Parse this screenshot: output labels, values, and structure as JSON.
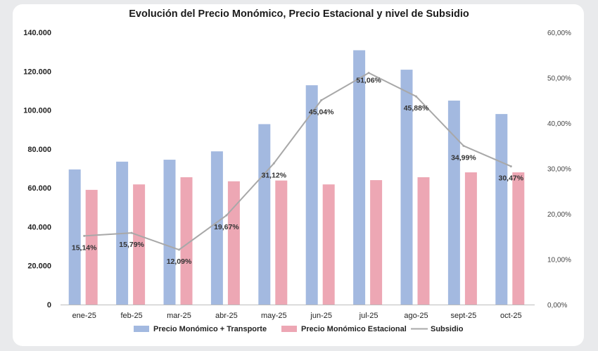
{
  "chart_data": {
    "type": "bar",
    "title": "Evolución del Precio Monómico, Precio Estacional y nivel de Subsidio",
    "categories": [
      "ene-25",
      "feb-25",
      "mar-25",
      "abr-25",
      "may-25",
      "jun-25",
      "jul-25",
      "ago-25",
      "sept-25",
      "oct-25"
    ],
    "series": [
      {
        "name": "Precio Monómico + Transporte",
        "type": "bar",
        "axis": "left",
        "color": "#a3b9e0",
        "values": [
          69500,
          73500,
          74500,
          78800,
          92800,
          112800,
          130800,
          120800,
          104900,
          98000
        ]
      },
      {
        "name": "Precio Monómico Estacional",
        "type": "bar",
        "axis": "left",
        "color": "#eda7b4",
        "values": [
          59000,
          61800,
          65500,
          63400,
          63800,
          61800,
          64000,
          65500,
          68000,
          68000
        ]
      },
      {
        "name": "Subsidio",
        "type": "line",
        "axis": "right",
        "color": "#a8a8a8",
        "values": [
          15.14,
          15.79,
          12.09,
          19.67,
          31.12,
          45.04,
          51.06,
          45.88,
          34.99,
          30.47
        ],
        "labels": [
          "15,14%",
          "15,79%",
          "12,09%",
          "19,67%",
          "31,12%",
          "45,04%",
          "51,06%",
          "45,88%",
          "34,99%",
          "30,47%"
        ]
      }
    ],
    "y_axis_left": {
      "min": 0,
      "max": 140000,
      "step": 20000,
      "tick_labels": [
        "0",
        "20.000",
        "40.000",
        "60.000",
        "80.000",
        "100.000",
        "120.000",
        "140.000"
      ]
    },
    "y_axis_right": {
      "min": 0,
      "max": 60,
      "step": 10,
      "tick_labels": [
        "0,00%",
        "10,00%",
        "20,00%",
        "30,00%",
        "40,00%",
        "50,00%",
        "60,00%"
      ]
    },
    "legend_position": "bottom",
    "grid": false
  }
}
